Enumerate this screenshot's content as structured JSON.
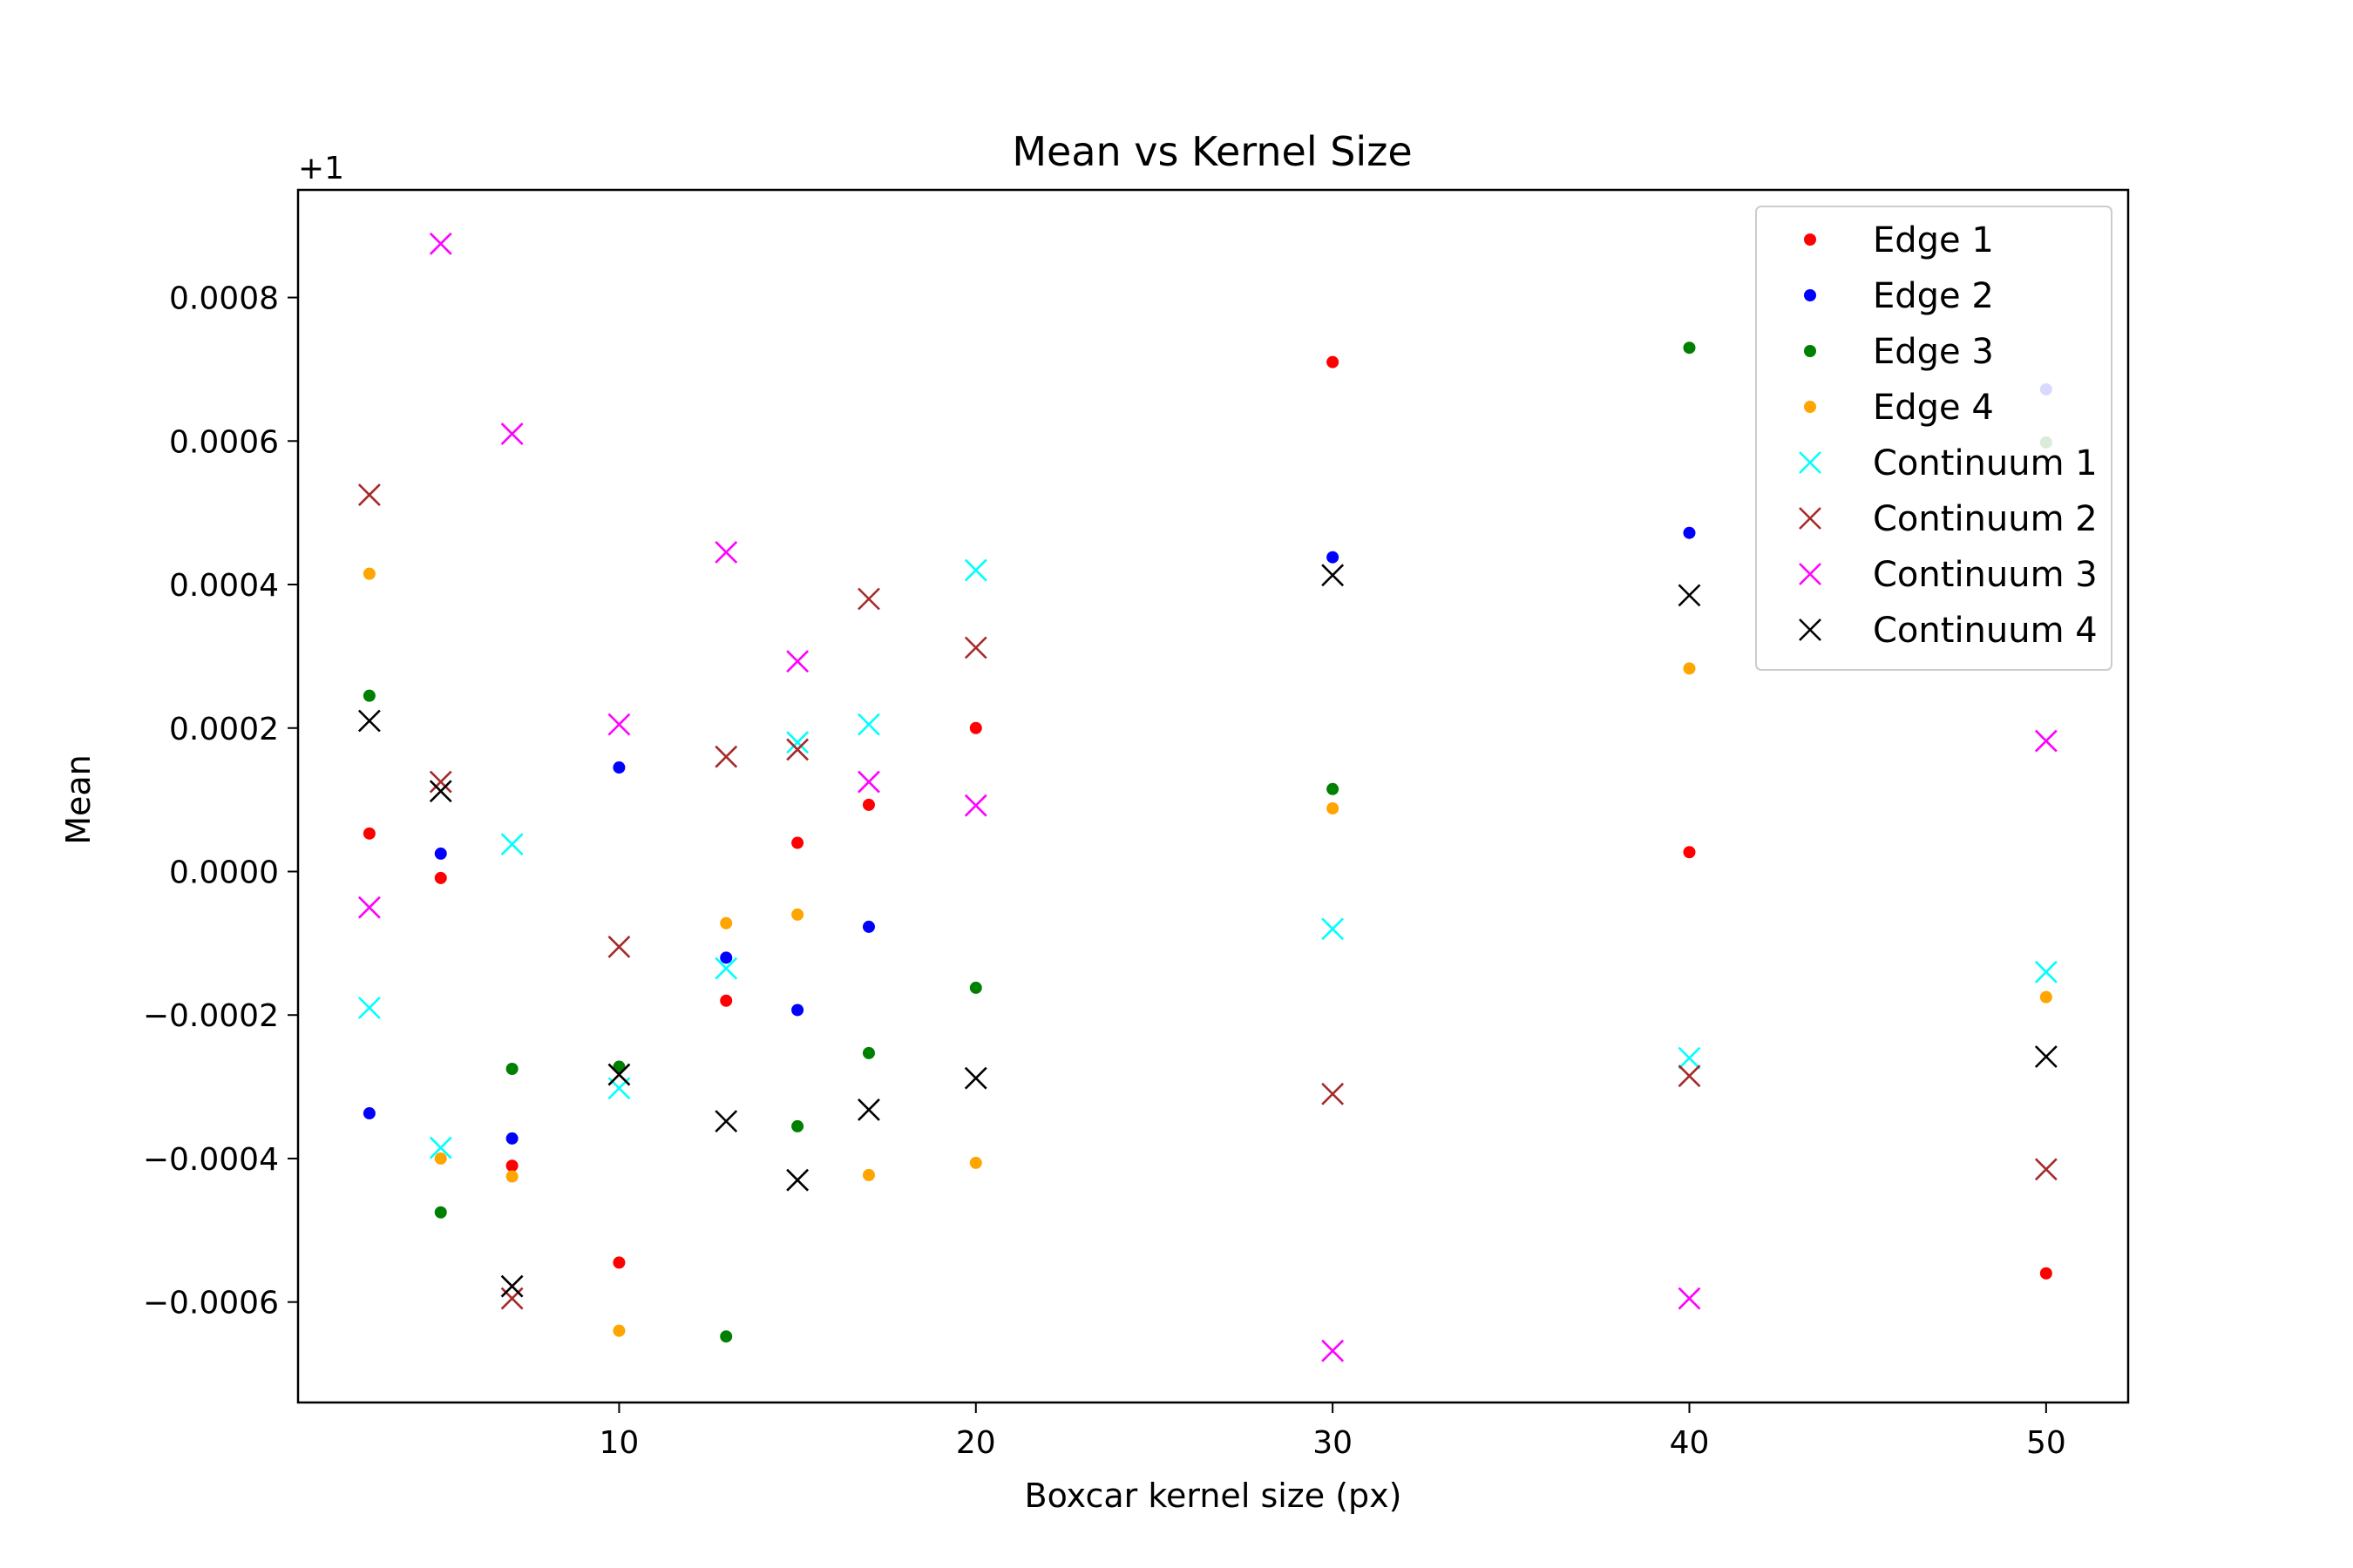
{
  "chart_data": {
    "type": "scatter",
    "title": "Mean vs Kernel Size",
    "xlabel": "Boxcar kernel size (px)",
    "ylabel": "Mean",
    "offset_label": "+1",
    "xlim": [
      1,
      52.3
    ],
    "ylim": [
      -0.00074,
      0.00095
    ],
    "xticks": [
      10,
      20,
      30,
      40,
      50
    ],
    "xtick_labels": [
      "10",
      "20",
      "30",
      "40",
      "50"
    ],
    "yticks": [
      -0.0006,
      -0.0004,
      -0.0002,
      0.0,
      0.0002,
      0.0004,
      0.0006,
      0.0008
    ],
    "ytick_labels": [
      "−0.0006",
      "−0.0004",
      "−0.0002",
      "0.0000",
      "0.0002",
      "0.0004",
      "0.0006",
      "0.0008"
    ],
    "grid": false,
    "legend_position": "top-right",
    "x": [
      3,
      5,
      7,
      10,
      13,
      15,
      17,
      20,
      30,
      40,
      50
    ],
    "series": [
      {
        "name": "Edge 1",
        "marker": "dot",
        "color": "#ff0000",
        "values": [
          5.3e-05,
          -9e-06,
          -0.00041,
          -0.000545,
          -0.00018,
          4e-05,
          9.3e-05,
          0.0002,
          0.00071,
          2.7e-05,
          -0.00056
        ]
      },
      {
        "name": "Edge 2",
        "marker": "dot",
        "color": "#0000ff",
        "values": [
          -0.000337,
          2.5e-05,
          -0.000372,
          0.000145,
          -0.00012,
          -0.000193,
          -7.7e-05,
          null,
          0.000438,
          0.000472,
          0.000672
        ]
      },
      {
        "name": "Edge 3",
        "marker": "dot",
        "color": "#008000",
        "values": [
          0.000245,
          -0.000475,
          -0.000275,
          -0.000272,
          -0.000648,
          -0.000355,
          -0.000253,
          -0.000162,
          0.000115,
          0.00073,
          0.000598
        ]
      },
      {
        "name": "Edge 4",
        "marker": "dot",
        "color": "#ffa500",
        "values": [
          0.000415,
          -0.0004,
          -0.000425,
          -0.00064,
          -7.2e-05,
          -6e-05,
          -0.000423,
          -0.000406,
          8.8e-05,
          0.000283,
          -0.000175
        ]
      },
      {
        "name": "Continuum 1",
        "marker": "x",
        "color": "#00ffff",
        "values": [
          -0.00019,
          -0.000385,
          3.8e-05,
          -0.000302,
          -0.000135,
          0.00018,
          0.000205,
          0.00042,
          -8e-05,
          -0.00026,
          -0.00014
        ]
      },
      {
        "name": "Continuum 2",
        "marker": "x",
        "color": "#a52a2a",
        "values": [
          0.000525,
          0.000125,
          -0.000595,
          -0.000105,
          0.00016,
          0.00017,
          0.00038,
          0.000312,
          -0.00031,
          -0.000285,
          -0.000415
        ]
      },
      {
        "name": "Continuum 3",
        "marker": "x",
        "color": "#ff00ff",
        "values": [
          -5e-05,
          0.000875,
          0.00061,
          0.000205,
          0.000445,
          0.000293,
          0.000125,
          9.2e-05,
          -0.000668,
          -0.000595,
          0.000182
        ]
      },
      {
        "name": "Continuum 4",
        "marker": "x",
        "color": "#000000",
        "values": [
          0.00021,
          0.000112,
          -0.000578,
          -0.000283,
          -0.000348,
          -0.00043,
          -0.000332,
          -0.000288,
          0.000413,
          0.000385,
          -0.000258
        ]
      }
    ]
  }
}
